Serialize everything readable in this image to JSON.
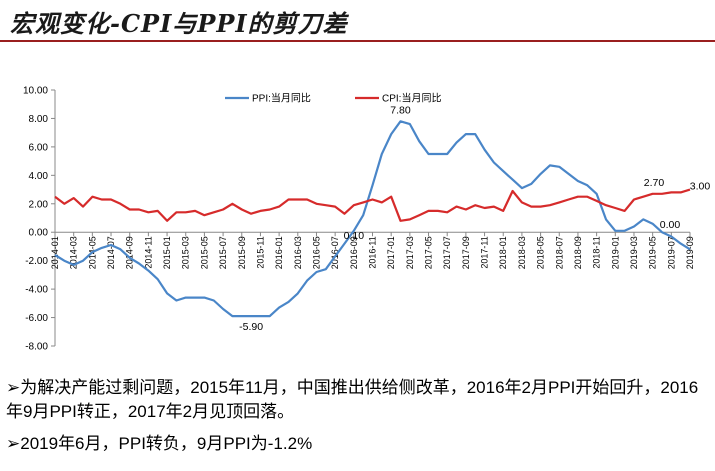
{
  "page": {
    "title": "宏观变化-CPI与PPI的剪刀差",
    "notes": [
      "➢为解决产能过剩问题，2015年11月，中国推出供给侧改革，2016年2月PPI开始回升，2016年9月PPI转正，2017年2月见顶回落。",
      "➢2019年6月，PPI转负，9月PPI为-1.2%"
    ]
  },
  "chart_data": {
    "type": "line",
    "title": "",
    "xlabel": "",
    "ylabel": "",
    "ylim": [
      -8,
      10
    ],
    "yticks": [
      "10.00",
      "8.00",
      "6.00",
      "4.00",
      "2.00",
      "0.00",
      "-2.00",
      "-4.00",
      "-6.00",
      "-8.00"
    ],
    "grid": false,
    "legend_position": "top",
    "x": [
      "2014-01",
      "2014-02",
      "2014-03",
      "2014-04",
      "2014-05",
      "2014-06",
      "2014-07",
      "2014-08",
      "2014-09",
      "2014-10",
      "2014-11",
      "2014-12",
      "2015-01",
      "2015-02",
      "2015-03",
      "2015-04",
      "2015-05",
      "2015-06",
      "2015-07",
      "2015-08",
      "2015-09",
      "2015-10",
      "2015-11",
      "2015-12",
      "2016-01",
      "2016-02",
      "2016-03",
      "2016-04",
      "2016-05",
      "2016-06",
      "2016-07",
      "2016-08",
      "2016-09",
      "2016-10",
      "2016-11",
      "2016-12",
      "2017-01",
      "2017-02",
      "2017-03",
      "2017-04",
      "2017-05",
      "2017-06",
      "2017-07",
      "2017-08",
      "2017-09",
      "2017-10",
      "2017-11",
      "2017-12",
      "2018-01",
      "2018-02",
      "2018-03",
      "2018-04",
      "2018-05",
      "2018-06",
      "2018-07",
      "2018-08",
      "2018-09",
      "2018-10",
      "2018-11",
      "2018-12",
      "2019-01",
      "2019-02",
      "2019-03",
      "2019-04",
      "2019-05",
      "2019-06",
      "2019-07",
      "2019-08",
      "2019-09"
    ],
    "tick_labels": [
      "2014-01",
      "2014-03",
      "2014-05",
      "2014-07",
      "2014-09",
      "2014-11",
      "2015-01",
      "2015-03",
      "2015-05",
      "2015-07",
      "2015-09",
      "2015-11",
      "2016-01",
      "2016-03",
      "2016-05",
      "2016-07",
      "2016-09",
      "2016-11",
      "2017-01",
      "2017-03",
      "2017-05",
      "2017-07",
      "2017-09",
      "2017-11",
      "2018-01",
      "2018-03",
      "2018-05",
      "2018-07",
      "2018-09",
      "2018-11",
      "2019-01",
      "2019-03",
      "2019-05",
      "2019-07",
      "2019-09"
    ],
    "series": [
      {
        "name": "PPI:当月同比",
        "color": "#4a86c8",
        "values": [
          -1.6,
          -2.0,
          -2.3,
          -2.0,
          -1.4,
          -1.1,
          -0.9,
          -1.2,
          -1.8,
          -2.2,
          -2.7,
          -3.3,
          -4.3,
          -4.8,
          -4.6,
          -4.6,
          -4.6,
          -4.8,
          -5.4,
          -5.9,
          -5.9,
          -5.9,
          -5.9,
          -5.9,
          -5.3,
          -4.9,
          -4.3,
          -3.4,
          -2.8,
          -2.6,
          -1.7,
          -0.8,
          0.1,
          1.2,
          3.3,
          5.5,
          6.9,
          7.8,
          7.6,
          6.4,
          5.5,
          5.5,
          5.5,
          6.3,
          6.9,
          6.9,
          5.8,
          4.9,
          4.3,
          3.7,
          3.1,
          3.4,
          4.1,
          4.7,
          4.6,
          4.1,
          3.6,
          3.3,
          2.7,
          0.9,
          0.1,
          0.1,
          0.4,
          0.9,
          0.6,
          0.0,
          -0.3,
          -0.8,
          -1.2
        ]
      },
      {
        "name": "CPI:当月同比",
        "color": "#d62b2b",
        "values": [
          2.5,
          2.0,
          2.4,
          1.8,
          2.5,
          2.3,
          2.3,
          2.0,
          1.6,
          1.6,
          1.4,
          1.5,
          0.8,
          1.4,
          1.4,
          1.5,
          1.2,
          1.4,
          1.6,
          2.0,
          1.6,
          1.3,
          1.5,
          1.6,
          1.8,
          2.3,
          2.3,
          2.3,
          2.0,
          1.9,
          1.8,
          1.3,
          1.9,
          2.1,
          2.3,
          2.1,
          2.5,
          0.8,
          0.9,
          1.2,
          1.5,
          1.5,
          1.4,
          1.8,
          1.6,
          1.9,
          1.7,
          1.8,
          1.5,
          2.9,
          2.1,
          1.8,
          1.8,
          1.9,
          2.1,
          2.3,
          2.5,
          2.5,
          2.2,
          1.9,
          1.7,
          1.5,
          2.3,
          2.5,
          2.7,
          2.7,
          2.8,
          2.8,
          3.0
        ]
      }
    ],
    "annotations": [
      {
        "text": "7.80",
        "series": 0,
        "x": "2017-02"
      },
      {
        "text": "-5.90",
        "series": 0,
        "x": "2015-10"
      },
      {
        "text": "0.10",
        "series": 0,
        "x": "2016-09"
      },
      {
        "text": "0.00",
        "series": 0,
        "x": "2019-06"
      },
      {
        "text": "2.70",
        "series": 1,
        "x": "2019-06"
      },
      {
        "text": "3.00",
        "series": 1,
        "x": "2019-09"
      }
    ]
  }
}
